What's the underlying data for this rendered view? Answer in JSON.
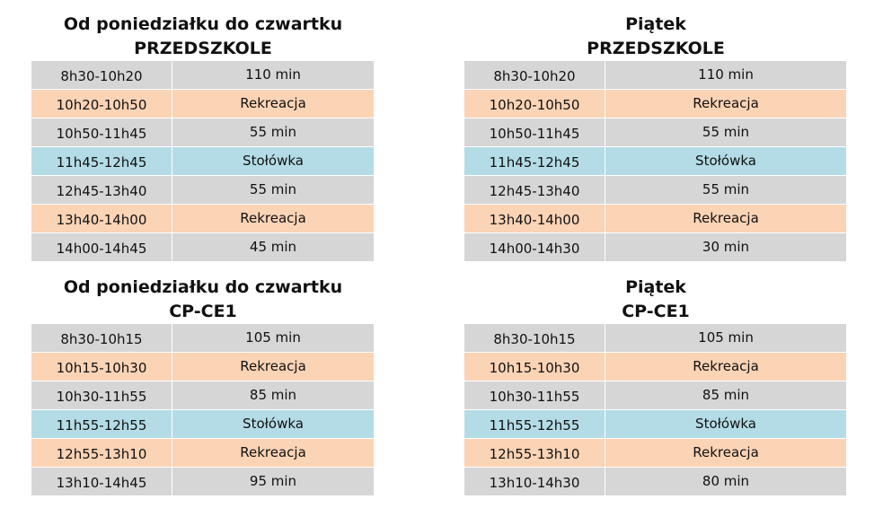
{
  "top_left": {
    "days": "Od poniedziałku do czwartku",
    "group": "PRZEDSZKOLE",
    "rows": [
      {
        "time": "8h30-10h20",
        "value": "110 min",
        "type": "lesson"
      },
      {
        "time": "10h20-10h50",
        "value": "Rekreacja",
        "type": "break"
      },
      {
        "time": "10h50-11h45",
        "value": "55 min",
        "type": "lesson"
      },
      {
        "time": "11h45-12h45",
        "value": "Stołówka",
        "type": "lunch"
      },
      {
        "time": "12h45-13h40",
        "value": "55 min",
        "type": "lesson"
      },
      {
        "time": "13h40-14h00",
        "value": "Rekreacja",
        "type": "break"
      },
      {
        "time": "14h00-14h45",
        "value": "45 min",
        "type": "lesson"
      }
    ]
  },
  "top_right": {
    "days": "Piątek",
    "group": "PRZEDSZKOLE",
    "rows": [
      {
        "time": "8h30-10h20",
        "value": "110 min",
        "type": "lesson"
      },
      {
        "time": "10h20-10h50",
        "value": "Rekreacja",
        "type": "break"
      },
      {
        "time": "10h50-11h45",
        "value": "55 min",
        "type": "lesson"
      },
      {
        "time": "11h45-12h45",
        "value": "Stołówka",
        "type": "lunch"
      },
      {
        "time": "12h45-13h40",
        "value": "55 min",
        "type": "lesson"
      },
      {
        "time": "13h40-14h00",
        "value": "Rekreacja",
        "type": "break"
      },
      {
        "time": "14h00-14h30",
        "value": "30 min",
        "type": "lesson"
      }
    ]
  },
  "bottom_left": {
    "days": "Od poniedziałku do czwartku",
    "group": "CP-CE1",
    "rows": [
      {
        "time": "8h30-10h15",
        "value": "105 min",
        "type": "lesson"
      },
      {
        "time": "10h15-10h30",
        "value": "Rekreacja",
        "type": "break"
      },
      {
        "time": "10h30-11h55",
        "value": "85 min",
        "type": "lesson"
      },
      {
        "time": "11h55-12h55",
        "value": "Stołówka",
        "type": "lunch"
      },
      {
        "time": "12h55-13h10",
        "value": "Rekreacja",
        "type": "break"
      },
      {
        "time": "13h10-14h45",
        "value": "95 min",
        "type": "lesson"
      }
    ]
  },
  "bottom_right": {
    "days": "Piątek",
    "group": "CP-CE1",
    "rows": [
      {
        "time": "8h30-10h15",
        "value": "105 min",
        "type": "lesson"
      },
      {
        "time": "10h15-10h30",
        "value": "Rekreacja",
        "type": "break"
      },
      {
        "time": "10h30-11h55",
        "value": "85 min",
        "type": "lesson"
      },
      {
        "time": "11h55-12h55",
        "value": "Stołówka",
        "type": "lunch"
      },
      {
        "time": "12h55-13h10",
        "value": "Rekreacja",
        "type": "break"
      },
      {
        "time": "13h10-14h30",
        "value": "80 min",
        "type": "lesson"
      }
    ]
  },
  "colors": {
    "lesson": "#d6d6d6",
    "break": "#fbd3b5",
    "lunch": "#b4dce6"
  }
}
